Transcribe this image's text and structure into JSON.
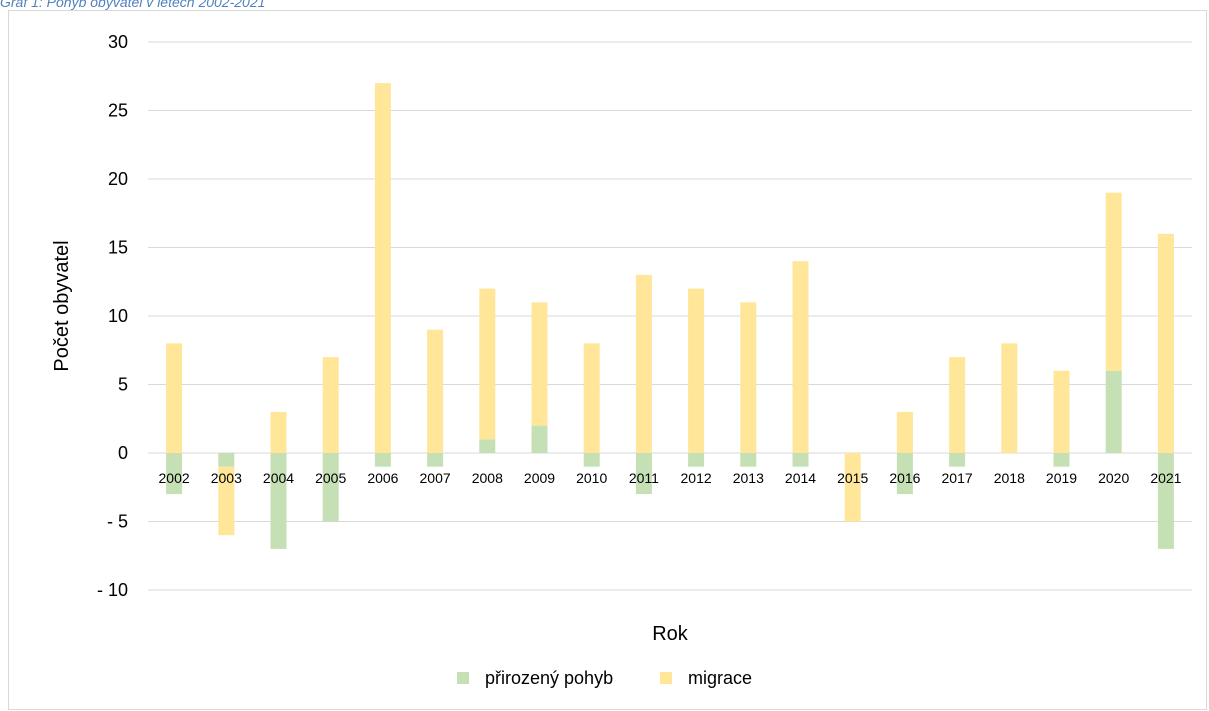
{
  "caption": "Graf 1: Pohyb obyvatel v letech 2002-2021",
  "chart_data": {
    "type": "bar",
    "stacked": true,
    "categories": [
      "2002",
      "2003",
      "2004",
      "2005",
      "2006",
      "2007",
      "2008",
      "2009",
      "2010",
      "2011",
      "2012",
      "2013",
      "2014",
      "2015",
      "2016",
      "2017",
      "2018",
      "2019",
      "2020",
      "2021"
    ],
    "series": [
      {
        "name": "přirozený pohyb",
        "color": "#c5e0b4",
        "values": [
          -3,
          -1,
          -7,
          -5,
          -1,
          -1,
          1,
          2,
          -1,
          -3,
          -1,
          -1,
          -1,
          0,
          -3,
          -1,
          0,
          -1,
          6,
          -7
        ]
      },
      {
        "name": "migrace",
        "color": "#ffe699",
        "values": [
          8,
          -5,
          3,
          7,
          27,
          9,
          11,
          9,
          8,
          13,
          12,
          11,
          14,
          -5,
          3,
          7,
          8,
          6,
          13,
          16
        ]
      }
    ],
    "xlabel": "Rok",
    "ylabel": "Počet obyvatel",
    "ylim": [
      -10,
      30
    ],
    "yticks": [
      30,
      25,
      20,
      15,
      10,
      5,
      0,
      -5,
      -10
    ],
    "ytick_labels": [
      "30",
      "25",
      "20",
      "15",
      "10",
      "5",
      "0",
      "- 5",
      "- 10"
    ],
    "grid": true,
    "legend_position": "bottom"
  }
}
